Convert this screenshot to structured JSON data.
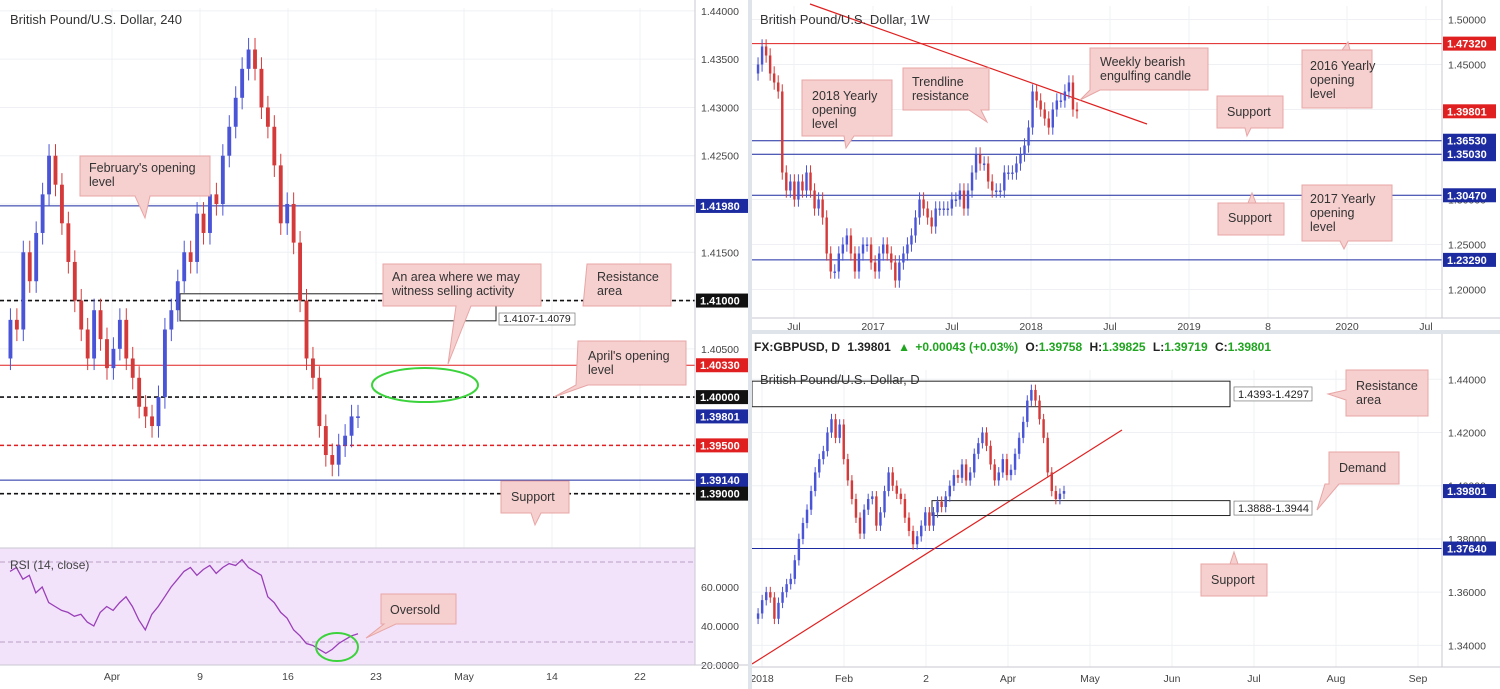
{
  "colors": {
    "bull": "#4a54d6",
    "bear": "#d43a3a",
    "red_level": "#e02020",
    "blue_level": "#1c2ba0",
    "black_level": "#111111",
    "callout_fill": "#f6cfcf",
    "callout_stroke": "#e8a5a5",
    "rsi_fill": "#f2e3fb",
    "rsi_line": "#9a3fb8",
    "ellipse": "#3cd23c",
    "up_green": "#1fa51f"
  },
  "chart_data": [
    {
      "id": "h4",
      "type": "candlestick",
      "title": "British Pound/U.S. Dollar, 240",
      "ylim": [
        1.3852,
        1.4403
      ],
      "y_ticks": [
        "1.44000",
        "1.43500",
        "1.43000",
        "1.42500",
        "1.42000",
        "1.41500",
        "1.41000",
        "1.40500",
        "1.40000",
        "1.39500",
        "1.39000"
      ],
      "x_ticks": [
        "Apr",
        "9",
        "16",
        "23",
        "May",
        "14",
        "22"
      ],
      "levels": [
        {
          "value": 1.4198,
          "label": "1.41980",
          "style": "solid",
          "color": "blue"
        },
        {
          "value": 1.41,
          "label": "1.41000",
          "style": "dashed",
          "color": "black"
        },
        {
          "value": 1.4033,
          "label": "1.40330",
          "style": "solid",
          "color": "red"
        },
        {
          "value": 1.4,
          "label": "1.40000",
          "style": "dashed",
          "color": "black"
        },
        {
          "value": 1.398,
          "label": "1.39801",
          "style": "current",
          "color": "blue"
        },
        {
          "value": 1.395,
          "label": "1.39500",
          "style": "dashed",
          "color": "red"
        },
        {
          "value": 1.3914,
          "label": "1.39140",
          "style": "solid",
          "color": "blue"
        },
        {
          "value": 1.39,
          "label": "1.39000",
          "style": "dashed",
          "color": "black"
        }
      ],
      "zone": {
        "label": "1.4107-1.4079",
        "high": 1.4107,
        "low": 1.4079
      },
      "annotations": [
        "February's opening level",
        "An area where we may witness selling activity",
        "Resistance area",
        "April's opening level",
        "Support"
      ],
      "path": [
        1.404,
        1.408,
        1.407,
        1.415,
        1.412,
        1.417,
        1.421,
        1.425,
        1.422,
        1.418,
        1.414,
        1.41,
        1.407,
        1.404,
        1.409,
        1.406,
        1.403,
        1.405,
        1.408,
        1.404,
        1.402,
        1.399,
        1.398,
        1.397,
        1.4,
        1.407,
        1.409,
        1.412,
        1.415,
        1.414,
        1.419,
        1.417,
        1.421,
        1.42,
        1.425,
        1.428,
        1.431,
        1.434,
        1.436,
        1.434,
        1.43,
        1.428,
        1.424,
        1.418,
        1.42,
        1.416,
        1.41,
        1.404,
        1.402,
        1.397,
        1.394,
        1.393,
        1.395,
        1.396,
        1.398,
        1.398
      ],
      "rsi": {
        "label": "RSI (14, close)",
        "ylim": [
          20,
          80
        ],
        "ticks": [
          "60.0000",
          "40.0000",
          "20.0000"
        ],
        "bands": [
          70,
          30
        ],
        "values": [
          68,
          70,
          64,
          66,
          57,
          60,
          52,
          50,
          48,
          47,
          45,
          46,
          42,
          40,
          47,
          50,
          48,
          52,
          55,
          50,
          43,
          38,
          46,
          50,
          55,
          60,
          64,
          68,
          70,
          66,
          69,
          71,
          67,
          70,
          72,
          71,
          74,
          70,
          68,
          66,
          55,
          52,
          47,
          44,
          38,
          35,
          31,
          30,
          28,
          26,
          28,
          31,
          33,
          35,
          36
        ],
        "annotation": "Oversold"
      }
    },
    {
      "id": "weekly",
      "type": "candlestick",
      "title": "British Pound/U.S. Dollar, 1W",
      "ylim": [
        1.175,
        1.515
      ],
      "y_ticks": [
        "1.50000",
        "1.45000",
        "1.40000",
        "1.35000",
        "1.30000",
        "1.25000",
        "1.20000"
      ],
      "x_ticks": [
        "Jul",
        "2017",
        "Jul",
        "2018",
        "Jul",
        "2019",
        "8",
        "2020",
        "Jul"
      ],
      "levels": [
        {
          "value": 1.4732,
          "label": "1.47320",
          "style": "solid",
          "color": "red"
        },
        {
          "value": 1.398,
          "label": "1.39801",
          "style": "current",
          "color": "red"
        },
        {
          "value": 1.3653,
          "label": "1.36530",
          "style": "solid",
          "color": "blue"
        },
        {
          "value": 1.3503,
          "label": "1.35030",
          "style": "solid",
          "color": "blue"
        },
        {
          "value": 1.3047,
          "label": "1.30470",
          "style": "solid",
          "color": "blue"
        },
        {
          "value": 1.2329,
          "label": "1.23290",
          "style": "solid",
          "color": "blue"
        }
      ],
      "annotations": [
        "Weekly bearish engulfing candle",
        "Trendline resistance",
        "2016 Yearly opening level",
        "2018 Yearly opening level",
        "Support",
        "Support",
        "2017 Yearly opening level"
      ],
      "path": [
        1.44,
        1.45,
        1.47,
        1.46,
        1.44,
        1.43,
        1.42,
        1.33,
        1.31,
        1.32,
        1.3,
        1.32,
        1.31,
        1.33,
        1.31,
        1.29,
        1.3,
        1.28,
        1.24,
        1.22,
        1.22,
        1.24,
        1.25,
        1.26,
        1.24,
        1.22,
        1.24,
        1.25,
        1.25,
        1.23,
        1.22,
        1.24,
        1.25,
        1.24,
        1.23,
        1.21,
        1.23,
        1.24,
        1.25,
        1.26,
        1.28,
        1.3,
        1.29,
        1.28,
        1.27,
        1.29,
        1.29,
        1.29,
        1.29,
        1.3,
        1.3,
        1.31,
        1.29,
        1.31,
        1.33,
        1.35,
        1.34,
        1.34,
        1.32,
        1.31,
        1.31,
        1.31,
        1.33,
        1.33,
        1.33,
        1.34,
        1.35,
        1.36,
        1.38,
        1.42,
        1.41,
        1.4,
        1.39,
        1.38,
        1.4,
        1.41,
        1.41,
        1.42,
        1.43,
        1.4,
        1.398
      ]
    },
    {
      "id": "daily",
      "type": "candlestick",
      "title": "British Pound/U.S. Dollar, D",
      "header": {
        "symbol": "FX:GBPUSD, D",
        "price": "1.39801",
        "change": "+0.00043 (+0.03%)",
        "open_label": "O:",
        "open": "1.39758",
        "high_label": "H:",
        "high": "1.39825",
        "low_label": "L:",
        "low": "1.39719",
        "close_label": "C:",
        "close": "1.39801"
      },
      "ylim": [
        1.3345,
        1.4435
      ],
      "y_ticks": [
        "1.44000",
        "1.42000",
        "1.40000",
        "1.38000",
        "1.36000",
        "1.34000"
      ],
      "x_ticks": [
        "2018",
        "Feb",
        "2",
        "Apr",
        "May",
        "Jun",
        "Jul",
        "Aug",
        "Sep"
      ],
      "levels": [
        {
          "value": 1.398,
          "label": "1.39801",
          "style": "current",
          "color": "blue"
        },
        {
          "value": 1.3764,
          "label": "1.37640",
          "style": "solid",
          "color": "blue"
        }
      ],
      "zones": [
        {
          "label": "1.4393-1.4297",
          "high": 1.4393,
          "low": 1.4297
        },
        {
          "label": "1.3888-1.3944",
          "high": 1.3944,
          "low": 1.3888
        }
      ],
      "annotations": [
        "Resistance area",
        "Demand",
        "Support"
      ],
      "path": [
        1.35,
        1.352,
        1.357,
        1.36,
        1.358,
        1.35,
        1.356,
        1.36,
        1.363,
        1.365,
        1.372,
        1.38,
        1.386,
        1.391,
        1.398,
        1.405,
        1.41,
        1.413,
        1.42,
        1.425,
        1.418,
        1.423,
        1.41,
        1.402,
        1.395,
        1.388,
        1.382,
        1.391,
        1.395,
        1.396,
        1.385,
        1.39,
        1.398,
        1.405,
        1.4,
        1.397,
        1.395,
        1.388,
        1.383,
        1.378,
        1.381,
        1.385,
        1.39,
        1.385,
        1.39,
        1.394,
        1.392,
        1.396,
        1.4,
        1.404,
        1.403,
        1.408,
        1.402,
        1.405,
        1.412,
        1.416,
        1.42,
        1.415,
        1.408,
        1.402,
        1.405,
        1.41,
        1.404,
        1.406,
        1.412,
        1.418,
        1.424,
        1.432,
        1.436,
        1.432,
        1.425,
        1.418,
        1.405,
        1.398,
        1.395,
        1.397,
        1.398
      ]
    }
  ]
}
